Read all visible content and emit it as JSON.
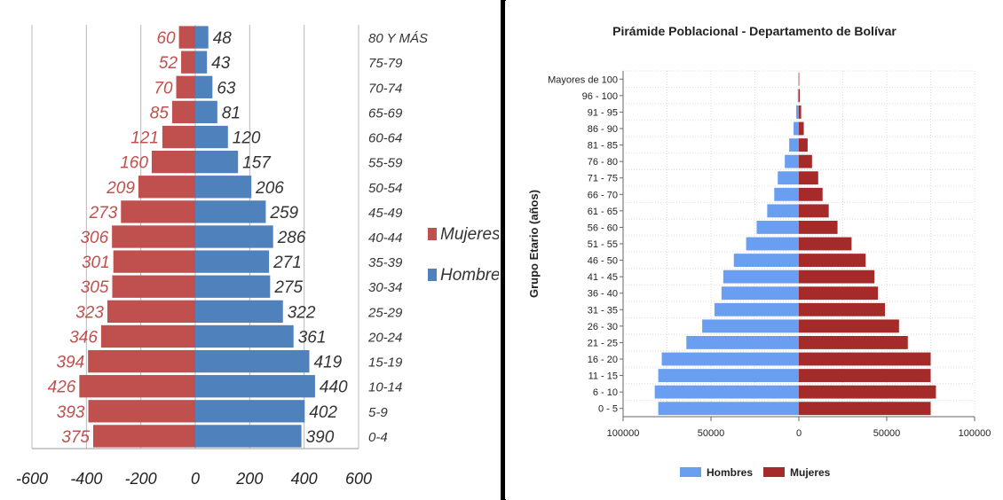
{
  "chart_data": [
    {
      "type": "bar",
      "orientation": "horizontal",
      "categories": [
        "0-4",
        "5-9",
        "10-14",
        "15-19",
        "20-24",
        "25-29",
        "30-34",
        "35-39",
        "40-44",
        "45-49",
        "50-54",
        "55-59",
        "60-64",
        "65-69",
        "70-74",
        "75-79",
        "80 Y MÁS"
      ],
      "series": [
        {
          "name": "Mujeres",
          "values": [
            375,
            393,
            426,
            394,
            346,
            323,
            305,
            301,
            306,
            273,
            209,
            160,
            121,
            85,
            70,
            52,
            60
          ],
          "color": "#c0504d"
        },
        {
          "name": "Hombres",
          "values": [
            390,
            402,
            440,
            419,
            361,
            322,
            275,
            271,
            286,
            259,
            206,
            157,
            120,
            81,
            63,
            43,
            48
          ],
          "color": "#4f81bd"
        }
      ],
      "data_labels": {
        "Mujeres": [
          "375",
          "393",
          "426",
          "394",
          "346",
          "323",
          "305",
          "301",
          "306",
          "273",
          "209",
          "160",
          "121",
          "85",
          "70",
          "52",
          "60"
        ],
        "Hombres": [
          "390",
          "402",
          "440",
          "419",
          "361",
          "322",
          "275",
          "271",
          "286",
          "259",
          "206",
          "157",
          "120",
          "81",
          "63",
          "43",
          "48"
        ]
      },
      "xlim": [
        -600,
        600
      ],
      "x_ticks": [
        "-600",
        "-400",
        "-200",
        "0",
        "200",
        "400",
        "600"
      ],
      "grid": true,
      "legend": "right"
    },
    {
      "type": "bar",
      "orientation": "horizontal",
      "title": "Pirámide Poblacional - Departamento de Bolívar",
      "ylabel": "Grupo Etario (años)",
      "categories": [
        "0 - 5",
        "6 - 10",
        "11 - 15",
        "16 - 20",
        "21 - 25",
        "26 - 30",
        "31 - 35",
        "36 - 40",
        "41 - 45",
        "46 - 50",
        "51 - 55",
        "56 - 60",
        "61 - 65",
        "66 - 70",
        "71 - 75",
        "76 - 80",
        "81 - 85",
        "86 - 90",
        "91 - 95",
        "96 - 100",
        "Mayores de 100"
      ],
      "series": [
        {
          "name": "Hombres",
          "values": [
            80000,
            82000,
            80000,
            78000,
            64000,
            55000,
            48000,
            44000,
            43000,
            37000,
            30000,
            24000,
            18000,
            14000,
            12000,
            8000,
            5500,
            3000,
            1500,
            600,
            300
          ],
          "color": "#6a9ef0"
        },
        {
          "name": "Mujeres",
          "values": [
            75000,
            78000,
            75000,
            75000,
            62000,
            57000,
            49000,
            45000,
            43000,
            38000,
            30000,
            22000,
            17000,
            13500,
            11000,
            7500,
            5000,
            2800,
            1300,
            500,
            200
          ],
          "color": "#a52a2a"
        }
      ],
      "x_ticks": [
        "100000",
        "50000",
        "0",
        "50000",
        "100000"
      ],
      "xlim": [
        -100000,
        100000
      ],
      "grid": true,
      "legend": "bottom"
    }
  ]
}
